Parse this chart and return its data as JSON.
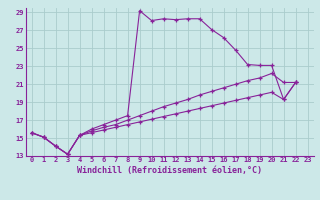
{
  "xlabel": "Windchill (Refroidissement éolien,°C)",
  "bg_color": "#cce8e8",
  "line_color": "#882299",
  "grid_color": "#aacccc",
  "xlim": [
    -0.5,
    23.5
  ],
  "ylim": [
    13,
    29.5
  ],
  "xticks": [
    0,
    1,
    2,
    3,
    4,
    5,
    6,
    7,
    8,
    9,
    10,
    11,
    12,
    13,
    14,
    15,
    16,
    17,
    18,
    19,
    20,
    21,
    22,
    23
  ],
  "yticks": [
    13,
    15,
    17,
    19,
    21,
    23,
    25,
    27,
    29
  ],
  "series": [
    [
      15.6,
      15.1,
      14.1,
      13.2,
      15.3,
      16.0,
      16.5,
      17.0,
      17.5,
      29.2,
      28.1,
      28.3,
      28.2,
      28.3,
      28.3,
      27.1,
      26.2,
      24.8,
      23.2,
      23.1,
      23.1,
      19.3,
      21.2
    ],
    [
      15.6,
      15.1,
      14.1,
      13.2,
      15.3,
      15.8,
      16.2,
      16.5,
      17.0,
      17.5,
      18.0,
      18.5,
      18.9,
      19.3,
      19.8,
      20.2,
      20.6,
      21.0,
      21.4,
      21.7,
      22.2,
      21.2,
      21.2
    ],
    [
      15.6,
      15.1,
      14.1,
      13.2,
      15.3,
      15.6,
      15.9,
      16.2,
      16.5,
      16.8,
      17.1,
      17.4,
      17.7,
      18.0,
      18.3,
      18.6,
      18.9,
      19.2,
      19.5,
      19.8,
      20.1,
      19.3,
      21.2
    ]
  ]
}
